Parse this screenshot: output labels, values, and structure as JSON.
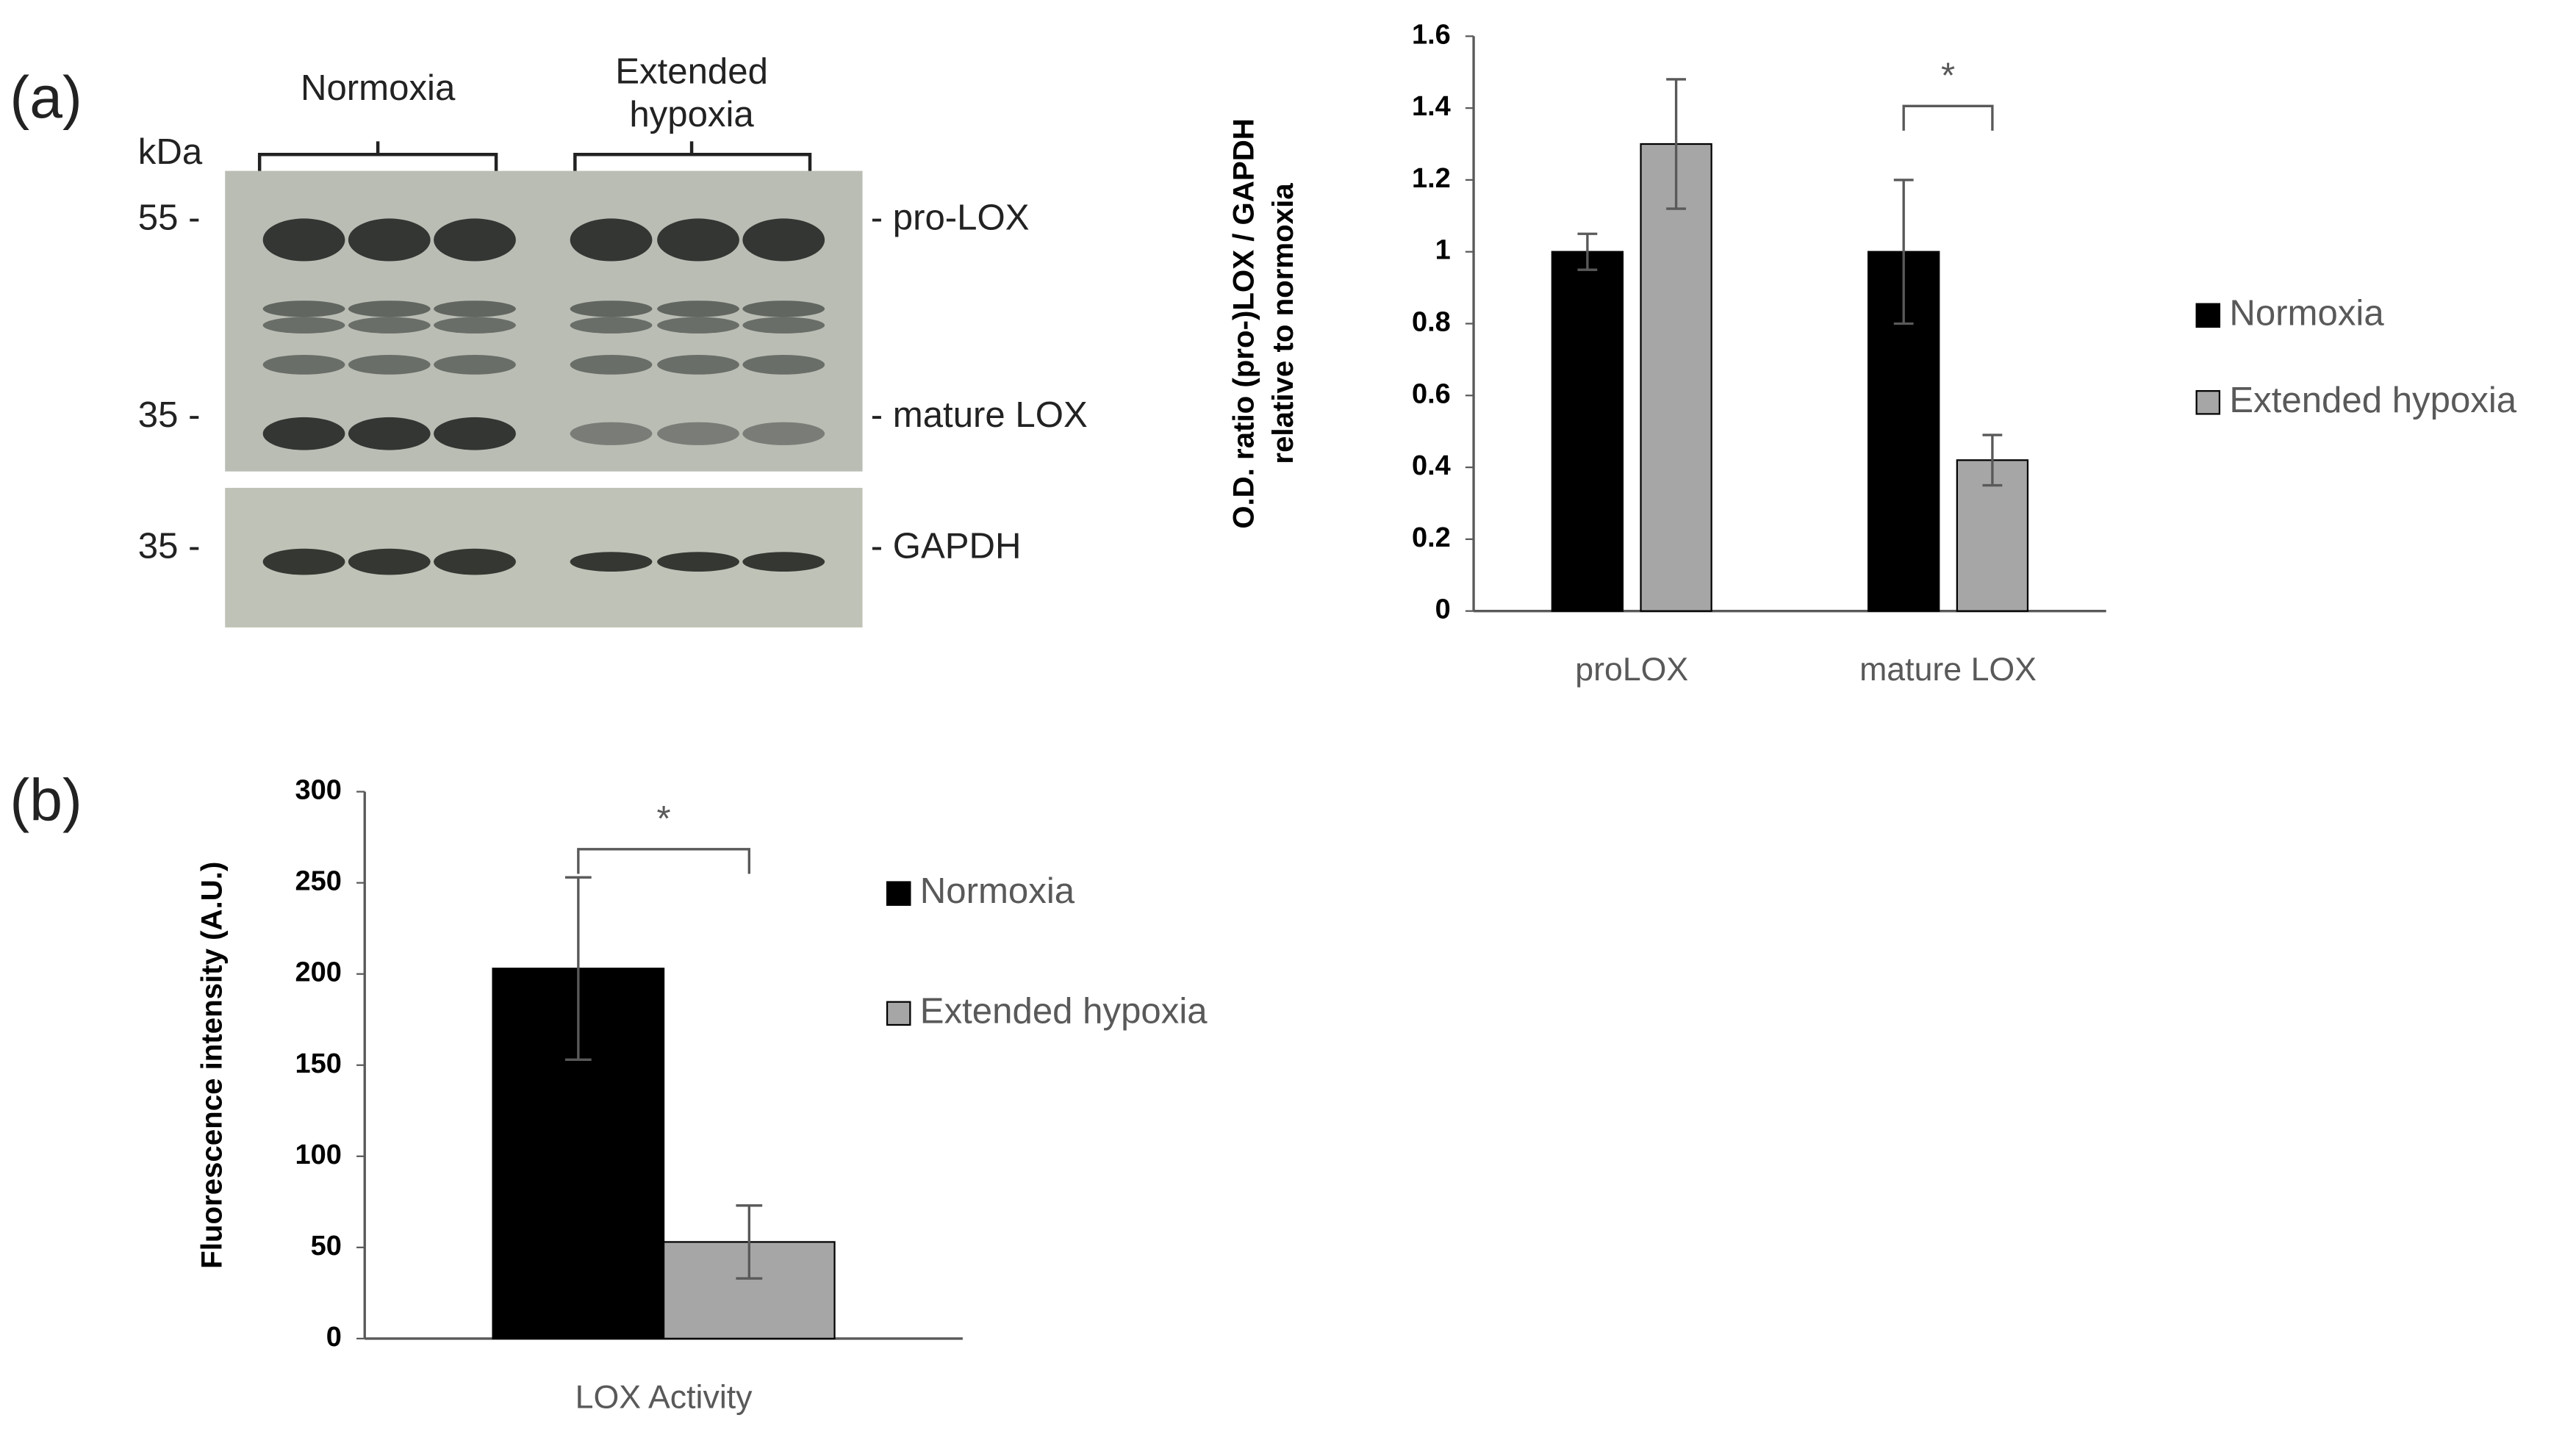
{
  "panel_labels": [
    "(a)",
    "(b)"
  ],
  "blot": {
    "groups": [
      "Normoxia",
      "Extended hypoxia"
    ],
    "unit": "kDa",
    "markers": [
      "55 -",
      "35 -",
      "35 -"
    ],
    "bands": [
      "- pro-LOX",
      "- mature LOX",
      "- GAPDH"
    ]
  },
  "chart_data": [
    {
      "type": "bar",
      "ylabel": [
        "O.D. ratio (pro-)LOX / GAPDH",
        "relative to normoxia"
      ],
      "categories": [
        "proLOX",
        "mature LOX"
      ],
      "series": [
        {
          "name": "Normoxia",
          "color": "#000000",
          "values": [
            1,
            1
          ],
          "errors": [
            0.05,
            0.2
          ]
        },
        {
          "name": "Extended hypoxia",
          "color": "#a6a6a6",
          "values": [
            1.3,
            0.42
          ],
          "errors": [
            0.18,
            0.07
          ]
        }
      ],
      "ylim": [
        0,
        1.6
      ],
      "yticks": [
        0,
        0.2,
        0.4,
        0.6,
        0.8,
        1,
        1.2,
        1.4,
        1.6
      ],
      "significance": "*",
      "legend": "right"
    },
    {
      "type": "bar",
      "ylabel": [
        "Fluorescence intensity (A.U.)"
      ],
      "categories": [
        "LOX Activity"
      ],
      "series": [
        {
          "name": "Normoxia",
          "color": "#000000",
          "values": [
            203
          ],
          "errors": [
            50
          ]
        },
        {
          "name": "Extended hypoxia",
          "color": "#a6a6a6",
          "values": [
            53
          ],
          "errors": [
            20
          ]
        }
      ],
      "ylim": [
        0,
        300
      ],
      "yticks": [
        0,
        50,
        100,
        150,
        200,
        250,
        300
      ],
      "significance": "*",
      "legend": "right"
    }
  ]
}
